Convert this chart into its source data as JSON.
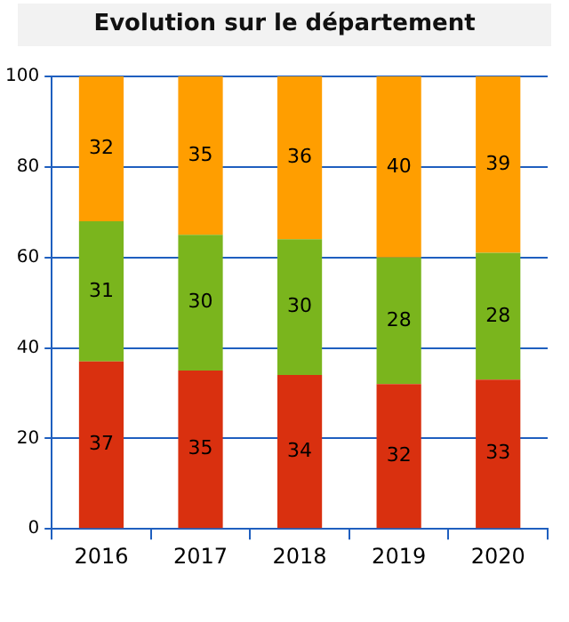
{
  "chart_data": {
    "type": "bar",
    "title": "Evolution sur le département",
    "categories": [
      "2016",
      "2017",
      "2018",
      "2019",
      "2020"
    ],
    "stacked": true,
    "series": [
      {
        "color": "#d9300f",
        "values": [
          37,
          35,
          34,
          32,
          33
        ]
      },
      {
        "color": "#7ab51d",
        "values": [
          31,
          30,
          30,
          28,
          28
        ]
      },
      {
        "color": "#ff9e00",
        "values": [
          32,
          35,
          36,
          40,
          39
        ]
      }
    ],
    "ylim": [
      0,
      100
    ],
    "yticks": [
      0,
      20,
      40,
      60,
      80,
      100
    ],
    "grid": "y",
    "data_labels": true,
    "legend": false
  }
}
